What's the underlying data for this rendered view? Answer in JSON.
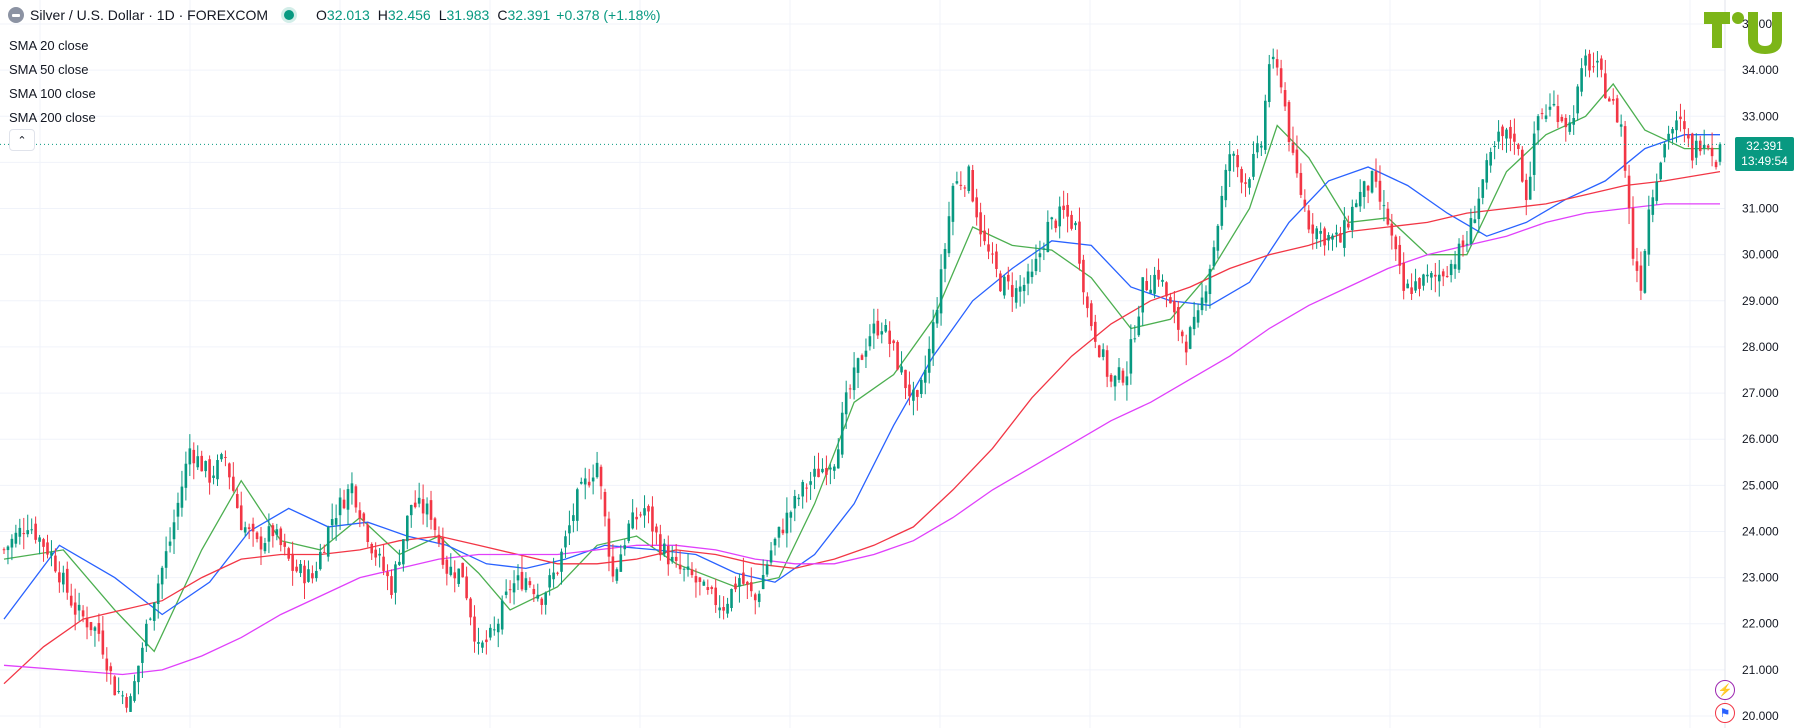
{
  "header": {
    "title": "Silver / U.S. Dollar · 1D · FOREXCOM",
    "open_label": "O",
    "open": "32.013",
    "high_label": "H",
    "high": "32.456",
    "low_label": "L",
    "low": "31.983",
    "close_label": "C",
    "close": "32.391",
    "change": "+0.378 (+1.18%)",
    "symbol_icon": "silver-coin-icon"
  },
  "indicators": [
    {
      "name": "SMA",
      "label": "20 close",
      "color": "#4caf50"
    },
    {
      "name": "SMA",
      "label": "50 close",
      "color": "#2962ff"
    },
    {
      "name": "SMA",
      "label": "100 close",
      "color": "#f23645"
    },
    {
      "name": "SMA",
      "label": "200 close",
      "color": "#e040fb"
    }
  ],
  "collapse_icon": "chevron-up-icon",
  "price_badge": {
    "price": "32.391",
    "countdown": "13:49:54"
  },
  "colors": {
    "up": "#089981",
    "down": "#f23645",
    "grid": "#f0f3fa",
    "axis_text": "#131722"
  },
  "chart_data": {
    "type": "candlestick",
    "title": "Silver / U.S. Dollar · 1D · FOREXCOM",
    "ylim": [
      20.0,
      35.0
    ],
    "y_ticks": [
      "20.000",
      "21.000",
      "22.000",
      "23.000",
      "24.000",
      "25.000",
      "26.000",
      "27.000",
      "28.000",
      "29.000",
      "30.000",
      "31.000",
      "32.000",
      "33.000",
      "34.000",
      "35.000"
    ],
    "last_price": 32.391,
    "close_path": [
      [
        0,
        23.6
      ],
      [
        6,
        24.2
      ],
      [
        12,
        23.5
      ],
      [
        18,
        22.3
      ],
      [
        24,
        21.8
      ],
      [
        28,
        20.6
      ],
      [
        32,
        20.3
      ],
      [
        37,
        22.3
      ],
      [
        42,
        23.8
      ],
      [
        47,
        25.8
      ],
      [
        52,
        25.2
      ],
      [
        56,
        25.6
      ],
      [
        60,
        24.2
      ],
      [
        64,
        23.7
      ],
      [
        68,
        24.0
      ],
      [
        73,
        23.2
      ],
      [
        78,
        23.0
      ],
      [
        83,
        24.3
      ],
      [
        88,
        25.0
      ],
      [
        93,
        23.7
      ],
      [
        98,
        22.8
      ],
      [
        103,
        24.6
      ],
      [
        108,
        24.4
      ],
      [
        112,
        23.2
      ],
      [
        116,
        23.1
      ],
      [
        120,
        21.4
      ],
      [
        124,
        21.8
      ],
      [
        128,
        22.8
      ],
      [
        132,
        23.0
      ],
      [
        136,
        22.6
      ],
      [
        140,
        23.2
      ],
      [
        145,
        24.7
      ],
      [
        150,
        25.5
      ],
      [
        154,
        23.0
      ],
      [
        158,
        24.1
      ],
      [
        162,
        24.5
      ],
      [
        166,
        23.7
      ],
      [
        170,
        23.2
      ],
      [
        174,
        23.0
      ],
      [
        178,
        22.6
      ],
      [
        182,
        22.4
      ],
      [
        186,
        23.0
      ],
      [
        190,
        22.5
      ],
      [
        194,
        23.6
      ],
      [
        198,
        24.3
      ],
      [
        202,
        24.9
      ],
      [
        206,
        25.3
      ],
      [
        210,
        25.6
      ],
      [
        213,
        26.8
      ],
      [
        216,
        27.6
      ],
      [
        219,
        28.3
      ],
      [
        222,
        28.5
      ],
      [
        225,
        27.9
      ],
      [
        228,
        27.2
      ],
      [
        231,
        26.7
      ],
      [
        234,
        27.9
      ],
      [
        237,
        29.5
      ],
      [
        240,
        31.5
      ],
      [
        244,
        31.7
      ],
      [
        248,
        30.2
      ],
      [
        252,
        29.4
      ],
      [
        256,
        29.2
      ],
      [
        260,
        29.5
      ],
      [
        264,
        30.6
      ],
      [
        268,
        30.9
      ],
      [
        271,
        30.6
      ],
      [
        274,
        28.8
      ],
      [
        277,
        28.0
      ],
      [
        280,
        27.2
      ],
      [
        284,
        27.5
      ],
      [
        288,
        29.3
      ],
      [
        292,
        29.6
      ],
      [
        296,
        28.6
      ],
      [
        299,
        28.1
      ],
      [
        302,
        28.6
      ],
      [
        306,
        30.2
      ],
      [
        310,
        32.2
      ],
      [
        314,
        31.6
      ],
      [
        318,
        32.4
      ],
      [
        320,
        34.2
      ],
      [
        323,
        33.8
      ],
      [
        326,
        32.0
      ],
      [
        330,
        30.7
      ],
      [
        334,
        30.4
      ],
      [
        338,
        30.3
      ],
      [
        342,
        31.2
      ],
      [
        346,
        31.6
      ],
      [
        350,
        30.7
      ],
      [
        354,
        29.2
      ],
      [
        358,
        29.4
      ],
      [
        362,
        29.5
      ],
      [
        366,
        29.8
      ],
      [
        370,
        30.3
      ],
      [
        374,
        31.6
      ],
      [
        378,
        32.5
      ],
      [
        382,
        32.6
      ],
      [
        385,
        31.3
      ],
      [
        388,
        33.0
      ],
      [
        392,
        33.2
      ],
      [
        396,
        32.8
      ],
      [
        400,
        34.2
      ],
      [
        403,
        34.0
      ],
      [
        406,
        33.4
      ],
      [
        409,
        32.8
      ],
      [
        412,
        30.0
      ],
      [
        414,
        29.4
      ],
      [
        416,
        31.0
      ],
      [
        418,
        31.8
      ],
      [
        421,
        32.7
      ],
      [
        424,
        32.8
      ],
      [
        427,
        32.2
      ],
      [
        430,
        32.6
      ],
      [
        433,
        32.1
      ],
      [
        434,
        32.391
      ]
    ],
    "series": [
      {
        "name": "SMA 20 close",
        "color": "#4caf50",
        "points": [
          [
            0,
            23.4
          ],
          [
            15,
            23.6
          ],
          [
            28,
            22.3
          ],
          [
            38,
            21.4
          ],
          [
            50,
            23.6
          ],
          [
            60,
            25.1
          ],
          [
            70,
            23.8
          ],
          [
            80,
            23.6
          ],
          [
            90,
            24.3
          ],
          [
            100,
            23.5
          ],
          [
            110,
            23.9
          ],
          [
            120,
            23.1
          ],
          [
            128,
            22.3
          ],
          [
            140,
            22.8
          ],
          [
            150,
            23.7
          ],
          [
            160,
            23.9
          ],
          [
            170,
            23.3
          ],
          [
            185,
            22.8
          ],
          [
            196,
            23.0
          ],
          [
            205,
            24.6
          ],
          [
            215,
            26.8
          ],
          [
            225,
            27.4
          ],
          [
            235,
            28.6
          ],
          [
            245,
            30.6
          ],
          [
            255,
            30.2
          ],
          [
            265,
            30.1
          ],
          [
            275,
            29.5
          ],
          [
            285,
            28.4
          ],
          [
            295,
            28.6
          ],
          [
            305,
            29.6
          ],
          [
            315,
            31.0
          ],
          [
            322,
            32.8
          ],
          [
            330,
            32.1
          ],
          [
            340,
            30.7
          ],
          [
            350,
            30.8
          ],
          [
            360,
            30.0
          ],
          [
            370,
            30.0
          ],
          [
            380,
            31.8
          ],
          [
            390,
            32.6
          ],
          [
            400,
            33.0
          ],
          [
            407,
            33.7
          ],
          [
            415,
            32.7
          ],
          [
            425,
            32.3
          ],
          [
            434,
            32.3
          ]
        ]
      },
      {
        "name": "SMA 50 close",
        "color": "#2962ff",
        "points": [
          [
            0,
            22.1
          ],
          [
            14,
            23.7
          ],
          [
            28,
            23.0
          ],
          [
            40,
            22.2
          ],
          [
            52,
            22.9
          ],
          [
            62,
            24.0
          ],
          [
            72,
            24.5
          ],
          [
            82,
            24.1
          ],
          [
            92,
            24.2
          ],
          [
            102,
            23.9
          ],
          [
            112,
            23.7
          ],
          [
            122,
            23.3
          ],
          [
            132,
            23.2
          ],
          [
            142,
            23.4
          ],
          [
            152,
            23.7
          ],
          [
            165,
            23.6
          ],
          [
            175,
            23.5
          ],
          [
            185,
            23.1
          ],
          [
            195,
            22.9
          ],
          [
            205,
            23.5
          ],
          [
            215,
            24.6
          ],
          [
            225,
            26.3
          ],
          [
            235,
            27.8
          ],
          [
            245,
            29.0
          ],
          [
            255,
            29.7
          ],
          [
            265,
            30.3
          ],
          [
            275,
            30.2
          ],
          [
            285,
            29.3
          ],
          [
            295,
            29.0
          ],
          [
            305,
            28.9
          ],
          [
            315,
            29.4
          ],
          [
            325,
            30.7
          ],
          [
            335,
            31.6
          ],
          [
            345,
            31.9
          ],
          [
            355,
            31.5
          ],
          [
            365,
            30.9
          ],
          [
            375,
            30.4
          ],
          [
            385,
            30.7
          ],
          [
            395,
            31.2
          ],
          [
            405,
            31.6
          ],
          [
            415,
            32.3
          ],
          [
            425,
            32.6
          ],
          [
            434,
            32.6
          ]
        ]
      },
      {
        "name": "SMA 100 close",
        "color": "#f23645",
        "points": [
          [
            0,
            20.7
          ],
          [
            10,
            21.5
          ],
          [
            20,
            22.1
          ],
          [
            30,
            22.3
          ],
          [
            40,
            22.5
          ],
          [
            50,
            23.0
          ],
          [
            60,
            23.4
          ],
          [
            70,
            23.5
          ],
          [
            80,
            23.5
          ],
          [
            90,
            23.6
          ],
          [
            100,
            23.8
          ],
          [
            110,
            23.9
          ],
          [
            120,
            23.7
          ],
          [
            130,
            23.5
          ],
          [
            140,
            23.3
          ],
          [
            150,
            23.3
          ],
          [
            160,
            23.4
          ],
          [
            170,
            23.6
          ],
          [
            180,
            23.5
          ],
          [
            190,
            23.3
          ],
          [
            200,
            23.2
          ],
          [
            210,
            23.4
          ],
          [
            220,
            23.7
          ],
          [
            230,
            24.1
          ],
          [
            240,
            24.9
          ],
          [
            250,
            25.8
          ],
          [
            260,
            26.9
          ],
          [
            270,
            27.8
          ],
          [
            280,
            28.5
          ],
          [
            290,
            29.0
          ],
          [
            300,
            29.3
          ],
          [
            310,
            29.7
          ],
          [
            320,
            30.0
          ],
          [
            330,
            30.2
          ],
          [
            340,
            30.5
          ],
          [
            350,
            30.6
          ],
          [
            360,
            30.7
          ],
          [
            370,
            30.9
          ],
          [
            380,
            31.0
          ],
          [
            390,
            31.1
          ],
          [
            400,
            31.3
          ],
          [
            410,
            31.5
          ],
          [
            420,
            31.6
          ],
          [
            434,
            31.8
          ]
        ]
      },
      {
        "name": "SMA 200 close",
        "color": "#e040fb",
        "points": [
          [
            0,
            21.1
          ],
          [
            15,
            21.0
          ],
          [
            30,
            20.9
          ],
          [
            40,
            21.0
          ],
          [
            50,
            21.3
          ],
          [
            60,
            21.7
          ],
          [
            70,
            22.2
          ],
          [
            80,
            22.6
          ],
          [
            90,
            23.0
          ],
          [
            100,
            23.2
          ],
          [
            110,
            23.4
          ],
          [
            120,
            23.5
          ],
          [
            130,
            23.5
          ],
          [
            140,
            23.5
          ],
          [
            150,
            23.6
          ],
          [
            160,
            23.7
          ],
          [
            170,
            23.7
          ],
          [
            180,
            23.6
          ],
          [
            190,
            23.4
          ],
          [
            200,
            23.3
          ],
          [
            210,
            23.3
          ],
          [
            220,
            23.5
          ],
          [
            230,
            23.8
          ],
          [
            240,
            24.3
          ],
          [
            250,
            24.9
          ],
          [
            260,
            25.4
          ],
          [
            270,
            25.9
          ],
          [
            280,
            26.4
          ],
          [
            290,
            26.8
          ],
          [
            300,
            27.3
          ],
          [
            310,
            27.8
          ],
          [
            320,
            28.4
          ],
          [
            330,
            28.9
          ],
          [
            340,
            29.3
          ],
          [
            350,
            29.7
          ],
          [
            360,
            30.0
          ],
          [
            370,
            30.2
          ],
          [
            380,
            30.4
          ],
          [
            390,
            30.7
          ],
          [
            400,
            30.9
          ],
          [
            410,
            31.0
          ],
          [
            420,
            31.1
          ],
          [
            434,
            31.1
          ]
        ]
      }
    ],
    "grid": true
  },
  "side_icons": [
    "lightning-icon",
    "flag-icon"
  ]
}
